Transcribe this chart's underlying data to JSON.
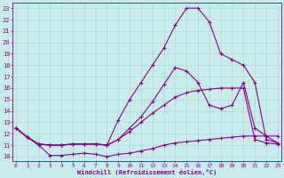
{
  "xlabel": "Windchill (Refroidissement éolien,°C)",
  "background_color": "#c8ecec",
  "grid_color": "#b0d8d8",
  "line_color": "#880088",
  "x_ticks": [
    0,
    1,
    2,
    3,
    4,
    5,
    6,
    7,
    8,
    9,
    10,
    11,
    12,
    13,
    14,
    15,
    16,
    17,
    18,
    19,
    20,
    21,
    22,
    23
  ],
  "y_ticks": [
    10,
    11,
    12,
    13,
    14,
    15,
    16,
    17,
    18,
    19,
    20,
    21,
    22,
    23
  ],
  "ylim": [
    9.6,
    23.5
  ],
  "xlim": [
    -0.3,
    23.3
  ],
  "line1_x": [
    0,
    1,
    2,
    3,
    4,
    5,
    6,
    7,
    8,
    9,
    10,
    11,
    12,
    13,
    14,
    15,
    16,
    17,
    18,
    19,
    20,
    21,
    22,
    23
  ],
  "line1_y": [
    12.5,
    11.7,
    11.0,
    10.1,
    10.1,
    10.2,
    10.3,
    10.2,
    10.0,
    10.2,
    10.3,
    10.5,
    10.7,
    11.0,
    11.2,
    11.3,
    11.4,
    11.5,
    11.6,
    11.7,
    11.8,
    11.8,
    11.8,
    11.8
  ],
  "line2_x": [
    0,
    1,
    2,
    3,
    4,
    5,
    6,
    7,
    8,
    9,
    10,
    11,
    12,
    13,
    14,
    15,
    16,
    17,
    18,
    19,
    20,
    21,
    22,
    23
  ],
  "line2_y": [
    12.5,
    11.7,
    11.1,
    11.0,
    11.0,
    11.1,
    11.1,
    11.1,
    11.0,
    11.5,
    12.2,
    13.0,
    13.8,
    14.5,
    15.2,
    15.6,
    15.8,
    15.9,
    16.0,
    16.0,
    16.0,
    11.5,
    11.2,
    11.1
  ],
  "line3_x": [
    0,
    1,
    2,
    3,
    4,
    5,
    6,
    7,
    8,
    9,
    10,
    11,
    12,
    13,
    14,
    15,
    16,
    17,
    18,
    19,
    20,
    21,
    22,
    23
  ],
  "line3_y": [
    12.5,
    11.7,
    11.1,
    11.0,
    11.0,
    11.1,
    11.1,
    11.1,
    11.0,
    13.2,
    15.0,
    16.5,
    18.0,
    19.5,
    21.5,
    23.0,
    23.0,
    21.8,
    19.0,
    18.5,
    18.0,
    16.5,
    11.5,
    11.2
  ],
  "line4_x": [
    0,
    1,
    2,
    3,
    4,
    5,
    6,
    7,
    8,
    9,
    10,
    11,
    12,
    13,
    14,
    15,
    16,
    17,
    18,
    19,
    20,
    21,
    22,
    23
  ],
  "line4_y": [
    12.5,
    11.7,
    11.1,
    11.0,
    11.0,
    11.1,
    11.1,
    11.1,
    11.0,
    11.5,
    12.5,
    13.5,
    14.8,
    16.3,
    17.8,
    17.5,
    16.5,
    14.5,
    14.2,
    14.5,
    16.5,
    12.5,
    11.8,
    11.2
  ]
}
